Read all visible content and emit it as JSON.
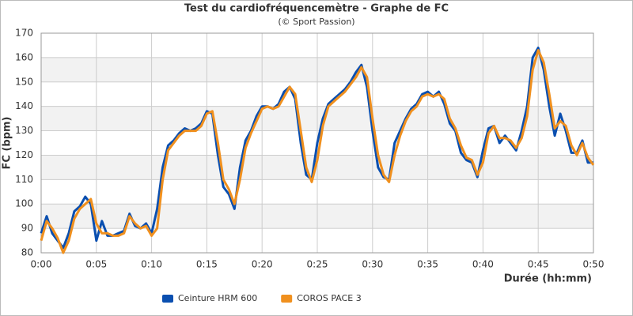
{
  "chart_data": {
    "type": "line",
    "title": "Test du cardiofréquencemètre - Graphe de FC",
    "subtitle": "(© Sport Passion)",
    "x_label": "Durée (hh:mm)",
    "y_label": "FC (bpm)",
    "x": [
      0,
      0.5,
      1,
      1.5,
      2,
      2.5,
      3,
      3.5,
      4,
      4.5,
      5,
      5.5,
      6,
      6.5,
      7,
      7.5,
      8,
      8.5,
      9,
      9.5,
      10,
      10.5,
      11,
      11.5,
      12,
      12.5,
      13,
      13.5,
      14,
      14.5,
      15,
      15.5,
      16,
      16.5,
      17,
      17.5,
      18,
      18.5,
      19,
      19.5,
      20,
      20.5,
      21,
      21.5,
      22,
      22.5,
      23,
      23.5,
      24,
      24.5,
      25,
      25.5,
      26,
      26.5,
      27,
      27.5,
      28,
      28.5,
      29,
      29.5,
      30,
      30.5,
      31,
      31.5,
      32,
      32.5,
      33,
      33.5,
      34,
      34.5,
      35,
      35.5,
      36,
      36.5,
      37,
      37.5,
      38,
      38.5,
      39,
      39.5,
      40,
      40.5,
      41,
      41.5,
      42,
      42.5,
      43,
      43.5,
      44,
      44.5,
      45,
      45.5,
      46,
      46.5,
      47,
      47.5,
      48,
      48.5,
      49,
      49.5,
      50
    ],
    "series": [
      {
        "name": "Ceinture HRM 600",
        "color": "#0a4fb0",
        "values": [
          88,
          95,
          88,
          85,
          82,
          88,
          97,
          99,
          103,
          100,
          85,
          93,
          87,
          87,
          88,
          89,
          96,
          91,
          90,
          92,
          88,
          98,
          115,
          124,
          126,
          129,
          131,
          130,
          131,
          133,
          138,
          137,
          120,
          107,
          104,
          98,
          115,
          126,
          130,
          136,
          140,
          140,
          139,
          141,
          146,
          148,
          143,
          125,
          112,
          110,
          125,
          135,
          141,
          143,
          145,
          147,
          150,
          154,
          157,
          148,
          130,
          115,
          111,
          110,
          125,
          130,
          135,
          139,
          141,
          145,
          146,
          144,
          146,
          141,
          133,
          130,
          121,
          118,
          117,
          111,
          122,
          131,
          132,
          125,
          128,
          125,
          122,
          130,
          140,
          160,
          164,
          155,
          140,
          128,
          137,
          130,
          121,
          121,
          126,
          117,
          117
        ]
      },
      {
        "name": "COROS PACE 3",
        "color": "#f0901e",
        "values": [
          85,
          93,
          90,
          86,
          80,
          85,
          94,
          98,
          100,
          102,
          92,
          88,
          88,
          87,
          87,
          88,
          95,
          92,
          90,
          91,
          87,
          90,
          110,
          122,
          125,
          128,
          130,
          130,
          130,
          132,
          137,
          138,
          125,
          110,
          106,
          100,
          110,
          123,
          129,
          134,
          139,
          140,
          139,
          140,
          144,
          148,
          145,
          130,
          115,
          109,
          118,
          132,
          140,
          142,
          144,
          146,
          149,
          152,
          156,
          152,
          135,
          120,
          112,
          109,
          120,
          128,
          134,
          138,
          140,
          144,
          145,
          144,
          145,
          143,
          135,
          131,
          124,
          119,
          118,
          112,
          117,
          129,
          132,
          127,
          127,
          126,
          123,
          127,
          136,
          155,
          163,
          158,
          145,
          131,
          134,
          132,
          124,
          120,
          125,
          119,
          116
        ]
      }
    ],
    "xlim": [
      0,
      50
    ],
    "ylim": [
      80,
      170
    ],
    "xticks": [
      {
        "value": 0,
        "label": "0:00"
      },
      {
        "value": 5,
        "label": "0:05"
      },
      {
        "value": 10,
        "label": "0:10"
      },
      {
        "value": 15,
        "label": "0:15"
      },
      {
        "value": 20,
        "label": "0:20"
      },
      {
        "value": 25,
        "label": "0:25"
      },
      {
        "value": 30,
        "label": "0:30"
      },
      {
        "value": 35,
        "label": "0:35"
      },
      {
        "value": 40,
        "label": "0:40"
      },
      {
        "value": 45,
        "label": "0:45"
      },
      {
        "value": 50,
        "label": "0:50"
      }
    ],
    "yticks": [
      80,
      90,
      100,
      110,
      120,
      130,
      140,
      150,
      160,
      170
    ],
    "grid": true
  }
}
